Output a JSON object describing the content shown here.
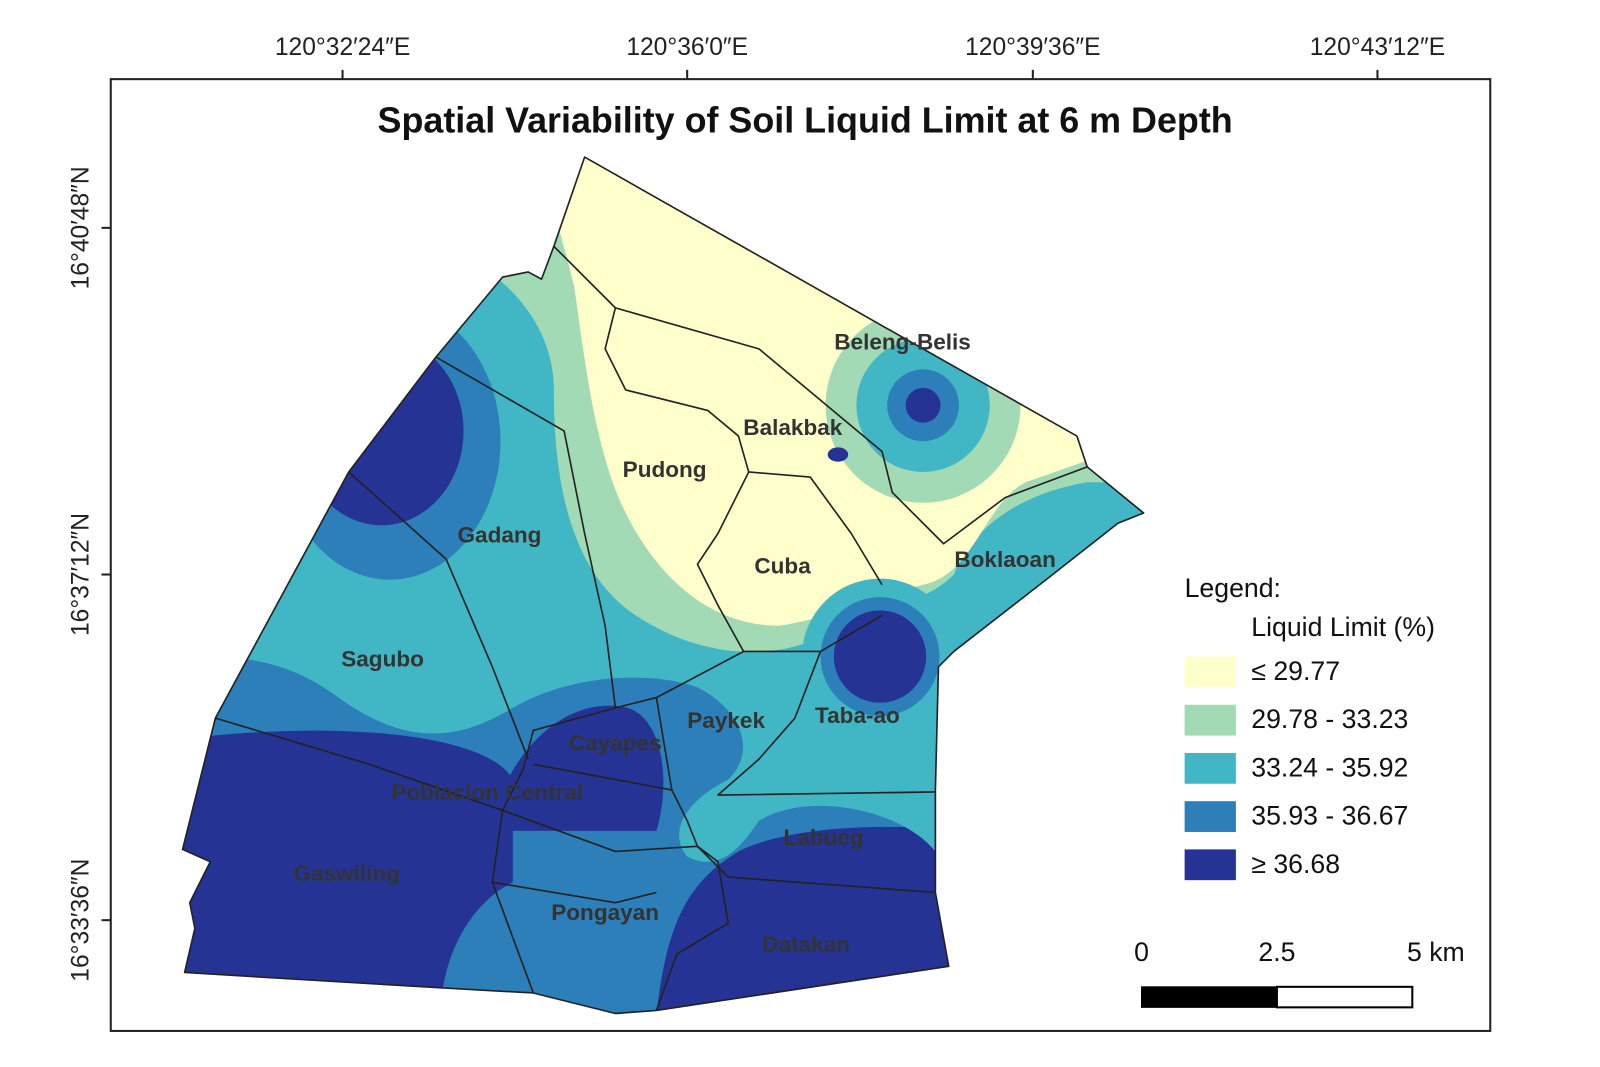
{
  "title": "Spatial Variability of Soil Liquid Limit at 6 m Depth",
  "longitude_labels": [
    "120°32′24″E",
    "120°36′0″E",
    "120°39′36″E",
    "120°43′12″E"
  ],
  "latitude_labels": [
    "16°40′48″N",
    "16°37′12″N",
    "16°33′36″N"
  ],
  "places": [
    "Beleng-Belis",
    "Balakbak",
    "Pudong",
    "Cuba",
    "Boklaoan",
    "Gadang",
    "Sagubo",
    "Paykek",
    "Taba-ao",
    "Cayapes",
    "Poblacion Central",
    "Gaswiling",
    "Pongayan",
    "Labueg",
    "Datakan"
  ],
  "legend": {
    "title": "Legend:",
    "subtitle": "Liquid Limit (%)",
    "classes": [
      {
        "label": "≤ 29.77",
        "color": "#ffffcc"
      },
      {
        "label": "29.78 - 33.23",
        "color": "#a1dab4"
      },
      {
        "label": "33.24 - 35.92",
        "color": "#41b6c4"
      },
      {
        "label": "35.93 - 36.67",
        "color": "#2c7fb8"
      },
      {
        "label": "≥ 36.68",
        "color": "#253494"
      }
    ]
  },
  "scale_bar": {
    "labels": [
      "0",
      "2.5",
      "5 km"
    ]
  }
}
